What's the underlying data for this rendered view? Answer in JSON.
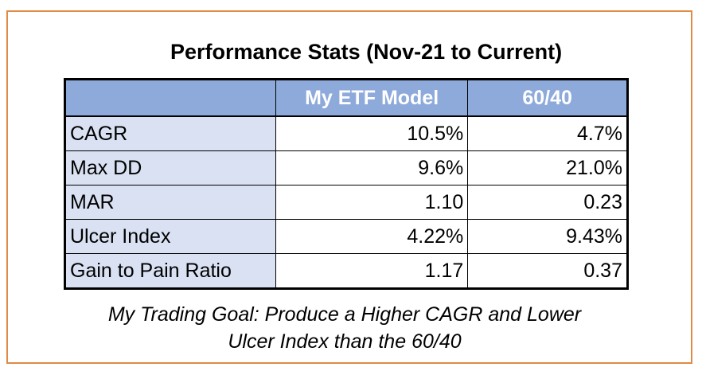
{
  "title": "Performance Stats (Nov-21 to Current)",
  "table": {
    "headers": [
      "",
      "My ETF Model",
      "60/40"
    ],
    "rows": [
      {
        "label": "CAGR",
        "model": "10.5%",
        "benchmark": "4.7%"
      },
      {
        "label": "Max DD",
        "model": "9.6%",
        "benchmark": "21.0%"
      },
      {
        "label": "MAR",
        "model": "1.10",
        "benchmark": "0.23"
      },
      {
        "label": "Ulcer Index",
        "model": "4.22%",
        "benchmark": "9.43%"
      },
      {
        "label": "Gain to Pain Ratio",
        "model": "1.17",
        "benchmark": "0.37"
      }
    ]
  },
  "goal": {
    "line1": "My Trading Goal: Produce a Higher CAGR and Lower",
    "line2": "Ulcer Index than the 60/40"
  },
  "colors": {
    "frame_border": "#e08a45",
    "header_fill": "#8eaadb",
    "label_fill": "#d9e1f2"
  }
}
